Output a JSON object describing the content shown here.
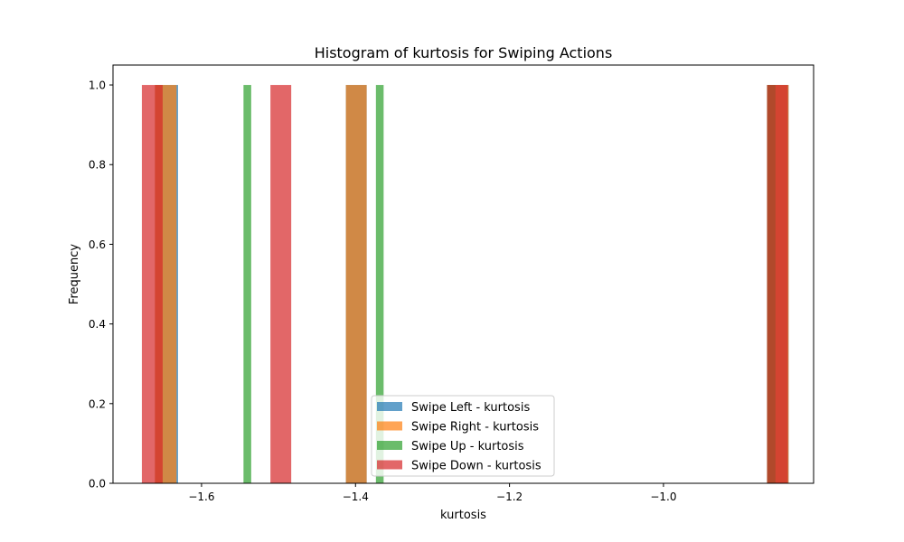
{
  "chart_data": {
    "type": "bar",
    "title": "Histogram of kurtosis for Swiping Actions",
    "xlabel": "kurtosis",
    "ylabel": "Frequency",
    "xlim": [
      -1.715,
      -0.805
    ],
    "ylim": [
      0,
      1.05
    ],
    "x_ticks": [
      -1.6,
      -1.4,
      -1.2,
      -1.0
    ],
    "x_tick_labels": [
      "−1.6",
      "−1.4",
      "−1.2",
      "−1.0"
    ],
    "y_ticks": [
      0.0,
      0.2,
      0.4,
      0.6,
      0.8,
      1.0
    ],
    "y_tick_labels": [
      "0.0",
      "0.2",
      "0.4",
      "0.6",
      "0.8",
      "1.0"
    ],
    "grid": false,
    "legend_position": "lower-center",
    "bar_opacity": 0.7,
    "series": [
      {
        "name": "Swipe Left - kurtosis",
        "color": "#1f77b4",
        "bins": [
          {
            "x0": -1.6605,
            "x1": -1.6305,
            "count": 1
          },
          {
            "x0": -1.4125,
            "x1": -1.3855,
            "count": 1
          },
          {
            "x0": -0.8655,
            "x1": -0.8375,
            "count": 1
          }
        ]
      },
      {
        "name": "Swipe Right - kurtosis",
        "color": "#ff7f0e",
        "bins": [
          {
            "x0": -1.6605,
            "x1": -1.6325,
            "count": 1
          },
          {
            "x0": -1.4125,
            "x1": -1.3855,
            "count": 1
          },
          {
            "x0": -0.8655,
            "x1": -0.8375,
            "count": 1
          }
        ]
      },
      {
        "name": "Swipe Up - kurtosis",
        "color": "#2ca02c",
        "bins": [
          {
            "x0": -1.5455,
            "x1": -1.5355,
            "count": 1
          },
          {
            "x0": -1.3735,
            "x1": -1.3635,
            "count": 1
          },
          {
            "x0": -0.8655,
            "x1": -0.8545,
            "count": 1
          }
        ]
      },
      {
        "name": "Swipe Down - kurtosis",
        "color": "#d62728",
        "bins": [
          {
            "x0": -1.6775,
            "x1": -1.6505,
            "count": 1
          },
          {
            "x0": -1.5105,
            "x1": -1.4835,
            "count": 1
          },
          {
            "x0": -0.8655,
            "x1": -0.8385,
            "count": 1
          }
        ]
      }
    ]
  }
}
